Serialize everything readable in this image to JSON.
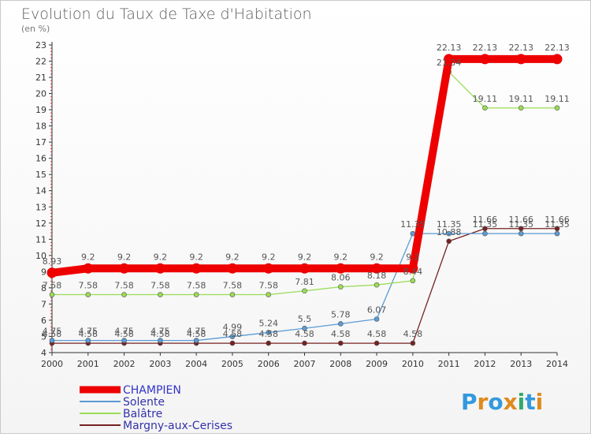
{
  "chart_data": {
    "type": "line",
    "title": "Evolution du Taux de Taxe d'Habitation",
    "unit_label": "(en %)",
    "x": [
      "2000",
      "2001",
      "2002",
      "2003",
      "2004",
      "2005",
      "2006",
      "2007",
      "2008",
      "2009",
      "2010",
      "2011",
      "2012",
      "2013",
      "2014"
    ],
    "ylim": [
      4,
      23
    ],
    "yticks": [
      4,
      5,
      6,
      7,
      8,
      9,
      10,
      11,
      12,
      13,
      14,
      15,
      16,
      17,
      18,
      19,
      20,
      21,
      22,
      23
    ],
    "series": [
      {
        "name": "CHAMPIEN",
        "color": "#ee0000",
        "values": [
          8.93,
          9.2,
          9.2,
          9.2,
          9.2,
          9.2,
          9.2,
          9.2,
          9.2,
          9.2,
          9.2,
          22.13,
          22.13,
          22.13,
          22.13
        ],
        "labels": [
          "8.93",
          "9.2",
          "9.2",
          "9.2",
          "9.2",
          "9.2",
          "9.2",
          "9.2",
          "9.2",
          "9.2",
          "9.2",
          "22.13",
          "22.13",
          "22.13",
          "22.13"
        ]
      },
      {
        "name": "Solente",
        "color": "#5a9bd5",
        "values": [
          4.75,
          4.75,
          4.75,
          4.75,
          4.75,
          4.99,
          5.24,
          5.5,
          5.78,
          6.07,
          11.35,
          11.35,
          11.35,
          11.35,
          11.35
        ],
        "labels": [
          "4.75",
          "4.75",
          "4.75",
          "4.75",
          "4.75",
          "4.99",
          "5.24",
          "5.5",
          "5.78",
          "6.07",
          "11.35",
          "11.35",
          "11.35",
          "11.35",
          "11.35"
        ]
      },
      {
        "name": "Balâtre",
        "color": "#99dd55",
        "values": [
          7.58,
          7.58,
          7.58,
          7.58,
          7.58,
          7.58,
          7.58,
          7.81,
          8.06,
          8.18,
          8.44,
          21.34,
          19.11,
          19.11,
          19.11
        ],
        "labels": [
          "7.58",
          "7.58",
          "7.58",
          "7.58",
          "7.58",
          "7.58",
          "7.58",
          "7.81",
          "8.06",
          "8.18",
          "8.44",
          "21.34",
          "19.11",
          "19.11",
          "19.11"
        ]
      },
      {
        "name": "Margny-aux-Cerises",
        "color": "#772222",
        "values": [
          4.58,
          4.58,
          4.58,
          4.58,
          4.58,
          4.58,
          4.58,
          4.58,
          4.58,
          4.58,
          4.58,
          10.88,
          11.66,
          11.66,
          11.66
        ],
        "labels": [
          "4.58",
          "4.58",
          "4.58",
          "4.58",
          "4.58",
          "4.58",
          "4.58",
          "4.58",
          "4.58",
          "4.58",
          "4.58",
          "10.88",
          "11.66",
          "11.66",
          "11.66"
        ]
      }
    ],
    "legend_position": "bottom-left",
    "grid": false
  },
  "branding": {
    "logo_text": "Proxiti"
  }
}
